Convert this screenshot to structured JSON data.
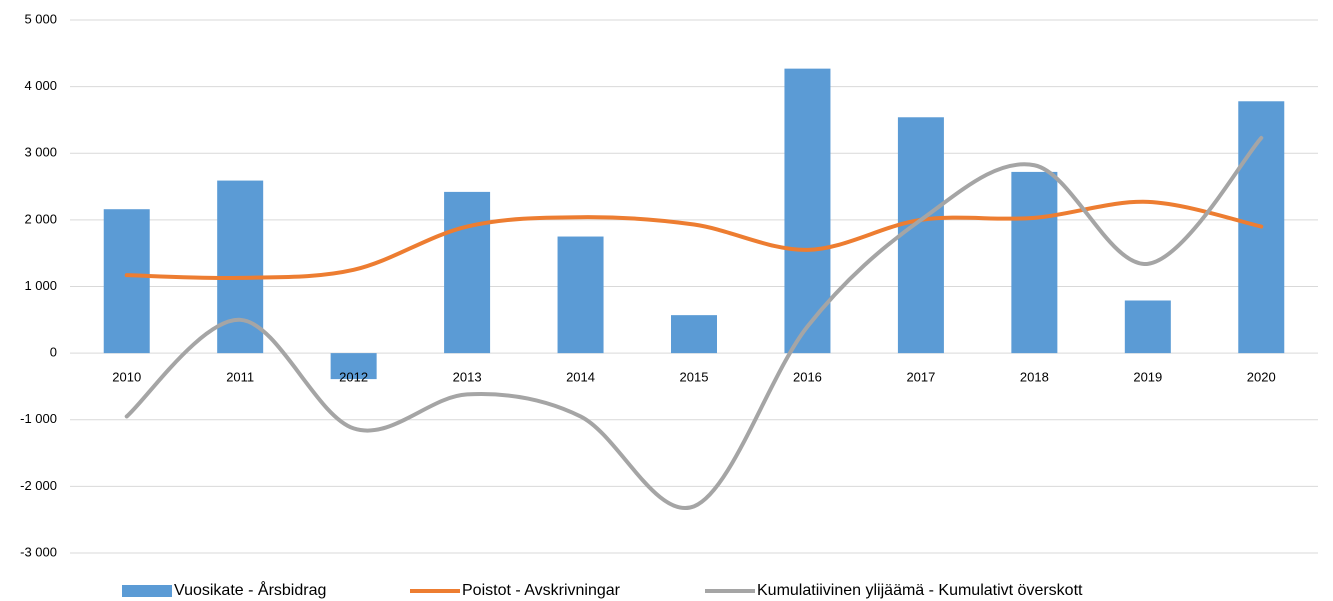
{
  "chart_data": {
    "type": "combo",
    "categories": [
      "2010",
      "2011",
      "2012",
      "2013",
      "2014",
      "2015",
      "2016",
      "2017",
      "2018",
      "2019",
      "2020"
    ],
    "series": [
      {
        "name": "Vuosikate - Årsbidrag",
        "type": "bar",
        "color": "#5b9bd5",
        "values": [
          2160,
          2590,
          -390,
          2420,
          1750,
          570,
          4270,
          3540,
          2720,
          790,
          3780
        ]
      },
      {
        "name": "Poistot - Avskrivningar",
        "type": "line",
        "smooth": true,
        "color": "#ed7d31",
        "values": [
          1170,
          1130,
          1250,
          1900,
          2040,
          1930,
          1550,
          2000,
          2030,
          2270,
          1900
        ]
      },
      {
        "name": "Kumulatiivinen ylijäämä - Kumulativt överskott",
        "type": "line",
        "smooth": true,
        "color": "#a5a5a5",
        "values": [
          -950,
          500,
          -1130,
          -620,
          -950,
          -2300,
          400,
          2000,
          2820,
          1340,
          3230
        ]
      }
    ],
    "ylim": [
      -3000,
      5000
    ],
    "yticks": [
      {
        "value": -3000,
        "label": "-3 000"
      },
      {
        "value": -2000,
        "label": "-2 000"
      },
      {
        "value": -1000,
        "label": "-1 000"
      },
      0,
      {
        "value": 1000,
        "label": "1 000"
      },
      {
        "value": 2000,
        "label": "2 000"
      },
      {
        "value": 3000,
        "label": "3 000"
      },
      {
        "value": 4000,
        "label": "4 000"
      },
      {
        "value": 5000,
        "label": "5 000"
      }
    ],
    "grid": true,
    "legend": "bottom"
  }
}
